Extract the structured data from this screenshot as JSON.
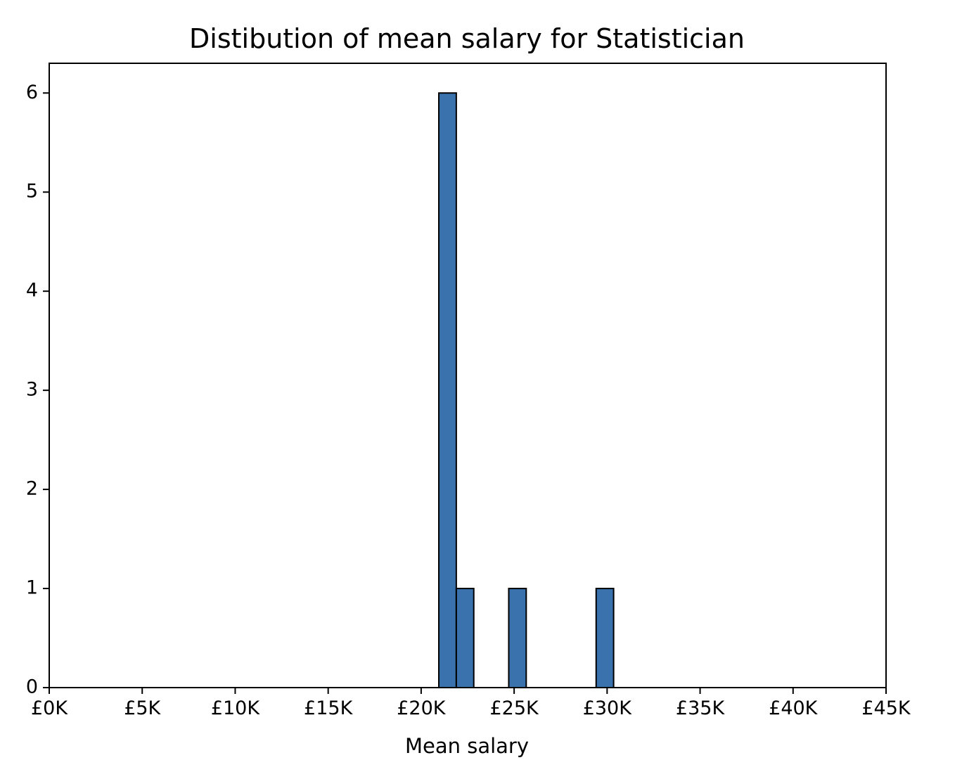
{
  "chart_data": {
    "type": "bar",
    "title": "Distibution of mean salary for Statistician",
    "xlabel": "Mean salary",
    "ylabel": "",
    "x_unit_prefix": "£",
    "xlim": [
      0,
      45000
    ],
    "ylim": [
      0,
      6.3
    ],
    "grid": false,
    "x_ticks": [
      0,
      5000,
      10000,
      15000,
      20000,
      25000,
      30000,
      35000,
      40000,
      45000
    ],
    "x_tick_labels": [
      "£0K",
      "£5K",
      "£10K",
      "£15K",
      "£20K",
      "£25K",
      "£30K",
      "£35K",
      "£40K",
      "£45K"
    ],
    "y_ticks": [
      0,
      1,
      2,
      3,
      4,
      5,
      6
    ],
    "y_tick_labels": [
      "0",
      "1",
      "2",
      "3",
      "4",
      "5",
      "6"
    ],
    "bar_color": "#3a72ae",
    "bar_edge_color": "#000000",
    "bins": [
      {
        "x0": 20950,
        "x1": 21890,
        "count": 6
      },
      {
        "x0": 21890,
        "x1": 22830,
        "count": 1
      },
      {
        "x0": 22830,
        "x1": 23770,
        "count": 0
      },
      {
        "x0": 23770,
        "x1": 24710,
        "count": 0
      },
      {
        "x0": 24710,
        "x1": 25650,
        "count": 1
      },
      {
        "x0": 25650,
        "x1": 26590,
        "count": 0
      },
      {
        "x0": 26590,
        "x1": 27530,
        "count": 0
      },
      {
        "x0": 27530,
        "x1": 28470,
        "count": 0
      },
      {
        "x0": 28470,
        "x1": 29410,
        "count": 0
      },
      {
        "x0": 29410,
        "x1": 30350,
        "count": 1
      }
    ]
  }
}
